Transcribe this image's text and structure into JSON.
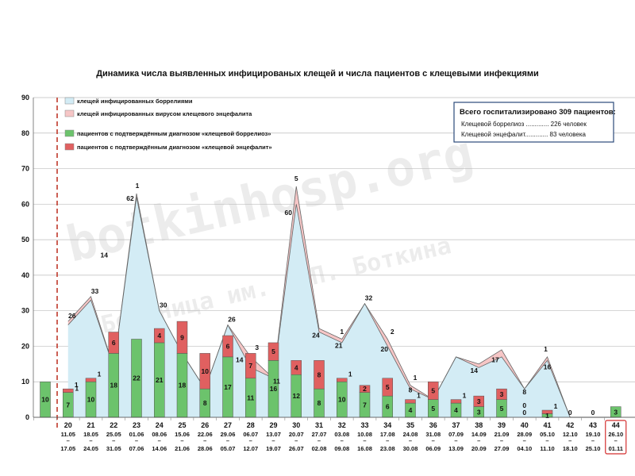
{
  "chart_data": {
    "type": "bar",
    "title": "Динамика числа выявленных инфицированых клещей и числа пациентов с клещевыми инфекциями",
    "ylim": [
      0,
      90
    ],
    "yticks": [
      0,
      10,
      20,
      30,
      40,
      50,
      60,
      70,
      80,
      90
    ],
    "legend": [
      {
        "label": "клещей инфицированных боррелиями",
        "color": "#d3ecf5"
      },
      {
        "label": "клещей инфицированных вирусом клещевого энцефалита",
        "color": "#f6c6c6"
      },
      {
        "label": "пациентов с подтверждённым диагнозом «клещевой боррелиоз»",
        "color": "#6cc36c"
      },
      {
        "label": "пациентов с подтверждённым диагнозом «клещевой энцефалит»",
        "color": "#e06060"
      }
    ],
    "info_box": {
      "header": "Всего госпитализировано 309 пациентов:",
      "line1": "Клещевой боррелиоз ............. 226 человек",
      "line2": "Клещевой энцефалит............. 83 человека"
    },
    "watermark1": "botkinhosp.org",
    "watermark2": "Больница им. С.П. Боткина",
    "categories": [
      {
        "week": "",
        "from": "",
        "to": ""
      },
      {
        "week": "20",
        "from": "11.05",
        "to": "17.05"
      },
      {
        "week": "21",
        "from": "18.05",
        "to": "24.05"
      },
      {
        "week": "22",
        "from": "25.05",
        "to": "31.05"
      },
      {
        "week": "23",
        "from": "01.06",
        "to": "07.06"
      },
      {
        "week": "24",
        "from": "08.06",
        "to": "14.06"
      },
      {
        "week": "25",
        "from": "15.06",
        "to": "21.06"
      },
      {
        "week": "26",
        "from": "22.06",
        "to": "28.06"
      },
      {
        "week": "27",
        "from": "29.06",
        "to": "05.07"
      },
      {
        "week": "28",
        "from": "06.07",
        "to": "12.07"
      },
      {
        "week": "29",
        "from": "13.07",
        "to": "19.07"
      },
      {
        "week": "30",
        "from": "20.07",
        "to": "26.07"
      },
      {
        "week": "31",
        "from": "27.07",
        "to": "02.08"
      },
      {
        "week": "32",
        "from": "03.08",
        "to": "09.08"
      },
      {
        "week": "33",
        "from": "10.08",
        "to": "16.08"
      },
      {
        "week": "34",
        "from": "17.08",
        "to": "23.08"
      },
      {
        "week": "35",
        "from": "24.08",
        "to": "30.08"
      },
      {
        "week": "36",
        "from": "31.08",
        "to": "06.09"
      },
      {
        "week": "37",
        "from": "07.09",
        "to": "13.09"
      },
      {
        "week": "38",
        "from": "14.09",
        "to": "20.09"
      },
      {
        "week": "39",
        "from": "21.09",
        "to": "27.09"
      },
      {
        "week": "40",
        "from": "28.09",
        "to": "04.10"
      },
      {
        "week": "41",
        "from": "05.10",
        "to": "11.10"
      },
      {
        "week": "42",
        "from": "12.10",
        "to": "18.10"
      },
      {
        "week": "43",
        "from": "19.10",
        "to": "25.10"
      },
      {
        "week": "44",
        "from": "26.10",
        "to": "01.11",
        "highlight": true
      }
    ],
    "area_ticks_borrelia": [
      null,
      26,
      33,
      14,
      62,
      30,
      18,
      8,
      26,
      14,
      11,
      60,
      24,
      21,
      32,
      20,
      8,
      5,
      17,
      14,
      17,
      8,
      16,
      0,
      0,
      0
    ],
    "area_ticks_encephalitis": [
      null,
      1,
      1,
      0,
      1,
      0,
      0,
      0,
      0,
      3,
      0,
      5,
      1,
      1,
      0,
      2,
      1,
      0,
      0,
      1,
      2,
      0,
      1,
      0,
      0,
      0
    ],
    "area_ticks_borrelia_labels": [
      "",
      "26",
      "33",
      "14",
      "62",
      "30",
      "",
      "",
      "26",
      "14",
      "11",
      "60",
      "24",
      "21",
      "32",
      "20",
      "8",
      "",
      "",
      "14",
      "17",
      "8",
      "16",
      "",
      "",
      ""
    ],
    "area_ticks_encephalitis_labels": [
      "",
      "",
      "",
      "",
      "1",
      "",
      "",
      "",
      "",
      "3",
      "",
      "5",
      "",
      "1",
      "",
      "2",
      "1",
      "",
      "",
      "",
      "",
      "",
      "1",
      "",
      "",
      ""
    ],
    "bar_borreliosis": [
      10,
      7,
      10,
      18,
      22,
      21,
      18,
      8,
      17,
      11,
      16,
      12,
      8,
      10,
      7,
      6,
      4,
      5,
      4,
      3,
      5,
      0,
      1,
      0,
      0,
      3
    ],
    "bar_encephalitis": [
      0,
      1,
      1,
      6,
      0,
      4,
      9,
      10,
      6,
      7,
      5,
      4,
      8,
      1,
      2,
      5,
      1,
      5,
      1,
      3,
      3,
      0,
      1,
      0,
      0,
      0
    ],
    "bar_borreliosis_labels": [
      "10",
      "7",
      "10",
      "18",
      "22",
      "21",
      "18",
      "8",
      "17",
      "11",
      "16",
      "12",
      "8",
      "10",
      "7",
      "6",
      "4",
      "5",
      "4",
      "3",
      "5",
      "0",
      "1",
      "0",
      "0",
      "3"
    ],
    "bar_encephalitis_labels": [
      "",
      "1",
      "1",
      "6",
      "",
      "4",
      "9",
      "10",
      "6",
      "7",
      "5",
      "4",
      "8",
      "1",
      "2",
      "5",
      "1",
      "5",
      "1",
      "3",
      "3",
      "0",
      "1",
      "",
      "",
      ""
    ],
    "colors": {
      "borrelia_area": "#d3ecf5",
      "encephalitis_area": "#f6c6c6",
      "bar_green": "#6cc36c",
      "bar_red": "#e06060",
      "dashed_line": "#c0392b",
      "highlight": "#d32f2f"
    }
  }
}
